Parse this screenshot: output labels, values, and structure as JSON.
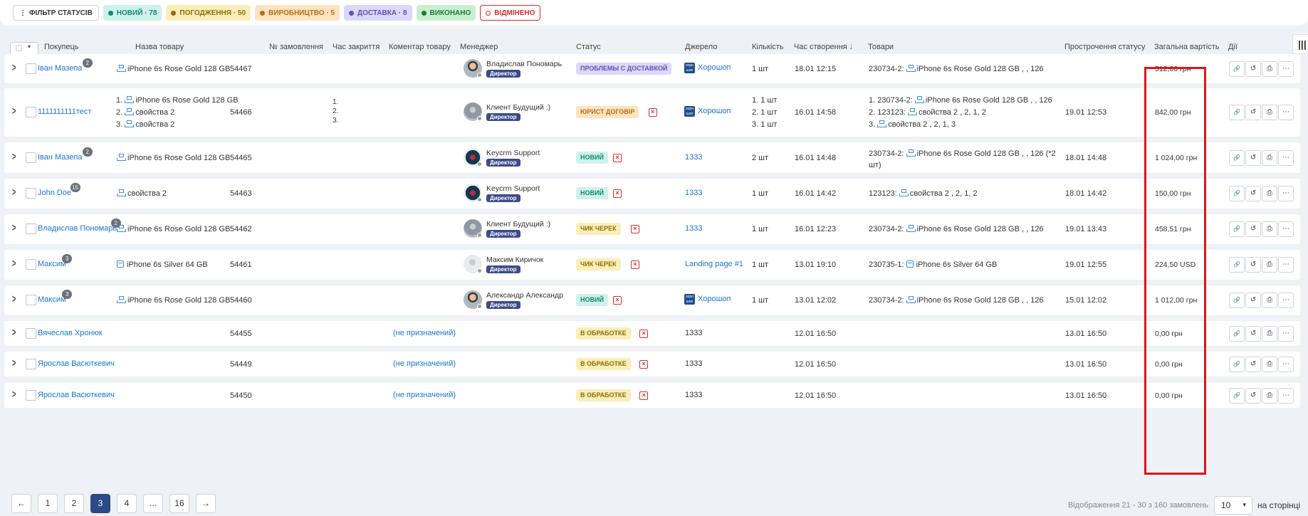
{
  "filter_bar": {
    "filter_label": "ФІЛЬТР СТАТУСІВ",
    "chips": [
      {
        "label": "НОВИЙ · 78",
        "bg": "#cdf2ea",
        "fg": "#16896d",
        "dot": "#16896d"
      },
      {
        "label": "ПОГОДЖЕННЯ · 50",
        "bg": "#fbeeb8",
        "fg": "#8c6f0b",
        "dot": "#8c6f0b"
      },
      {
        "label": "ВИРОБНИЦТВО · 5",
        "bg": "#fde3c2",
        "fg": "#b86e12",
        "dot": "#b86e12"
      },
      {
        "label": "ДОСТАВКА · 8",
        "bg": "#dcd8f7",
        "fg": "#5a4fc2",
        "dot": "#5a4fc2"
      },
      {
        "label": "ВИКОНАНО",
        "bg": "#c8f0cf",
        "fg": "#1f7a34",
        "dot": "#1f7a34"
      },
      {
        "label": "ВІДМІНЕНО",
        "bg": "#ffffff",
        "fg": "#d32f2f",
        "dot": "#ffffff"
      }
    ]
  },
  "headers": {
    "buyer": "Покупець",
    "product_name": "Назва товару",
    "order_no": "№ замовлення",
    "close_time": "Час закриття",
    "product_comment": "Коментар товару",
    "manager": "Менеджер",
    "status": "Статус",
    "source": "Джерело",
    "quantity": "Кількість",
    "created": "Час створення",
    "goods": "Товари",
    "status_overdue": "Прострочення статусу",
    "total": "Загальна вартість",
    "actions": "Дії"
  },
  "rows": [
    {
      "buyer": "Іван Мазепа",
      "buyer_count": "2",
      "products": [
        "iPhone 6s Rose Gold 128 GB"
      ],
      "order_no": "54467",
      "comments": [],
      "manager": "Владислав Пономарь",
      "role": "Директор",
      "avatar": "photo",
      "status": "ПРОБЛЕМЫ С ДОСТАВКОЙ",
      "status_color": "blue",
      "calendar": false,
      "source": "Хорошоп",
      "source_icon": true,
      "quantity": [
        "1 шт"
      ],
      "created": "18.01 12:15",
      "goods": [
        {
          "prefix": "230734-2:",
          "text": "iPhone 6s Rose Gold 128 GB , , 126"
        }
      ],
      "overdue": "",
      "total": "512,00 грн"
    },
    {
      "buyer": "1111111111тест",
      "buyer_count": "",
      "products": [
        "iPhone 6s Rose Gold 128 GB",
        "свойства 2",
        "свойства 2"
      ],
      "order_no": "54466",
      "comments": [
        "1.",
        "2.",
        "3."
      ],
      "manager": "Клиент Будущий :)",
      "role": "Директор",
      "avatar": "grey",
      "status": "ЮРИСТ ДОГОВІР",
      "status_color": "orange",
      "calendar": true,
      "source": "Хорошоп",
      "source_icon": true,
      "quantity": [
        "1. 1 шт",
        "2. 1 шт",
        "3. 1 шт"
      ],
      "created": "16.01 14:58",
      "goods": [
        {
          "prefix": "1. 230734-2:",
          "text": "iPhone 6s Rose Gold 128 GB , , 126"
        },
        {
          "prefix": "2. 123123:",
          "text": "свойства 2 , 2, 1, 2"
        },
        {
          "prefix": "3.",
          "text": "свойства 2 , 2, 1, 3"
        }
      ],
      "overdue": "19.01 12:53",
      "total": "842,00 грн"
    },
    {
      "buyer": "Іван Мазепа",
      "buyer_count": "2",
      "products": [
        "iPhone 6s Rose Gold 128 GB"
      ],
      "order_no": "54465",
      "comments": [],
      "manager": "Keycrm Support",
      "role": "Директор",
      "avatar": "logo",
      "status": "НОВИЙ",
      "status_color": "teal",
      "calendar": true,
      "source": "1333",
      "source_icon": false,
      "quantity": [
        "2 шт"
      ],
      "created": "16.01 14:48",
      "goods": [
        {
          "prefix": "230734-2:",
          "text": "iPhone 6s Rose Gold 128 GB , , 126 (*2"
        }
      ],
      "goods_extra": "шт)",
      "overdue": "18.01 14:48",
      "total": "1 024,00 грн"
    },
    {
      "buyer": "John Doe",
      "buyer_count": "15",
      "products": [
        "свойства 2"
      ],
      "order_no": "54463",
      "comments": [],
      "manager": "Keycrm Support",
      "role": "Директор",
      "avatar": "logo",
      "status": "НОВИЙ",
      "status_color": "teal",
      "calendar": true,
      "source": "1333",
      "source_icon": false,
      "quantity": [
        "1 шт"
      ],
      "created": "16.01 14:42",
      "goods": [
        {
          "prefix": "123123:",
          "text": "свойства 2 , 2, 1, 2"
        }
      ],
      "overdue": "18.01 14:42",
      "total": "150,00 грн"
    },
    {
      "buyer": "Владислав Пономарь",
      "buyer_count": "2",
      "products": [
        "iPhone 6s Rose Gold 128 GB"
      ],
      "order_no": "54462",
      "comments": [],
      "manager": "Клиент Будущий :)",
      "role": "Директор",
      "avatar": "grey",
      "status": "ЧИК ЧЕРЕК",
      "status_color": "yellow",
      "calendar": true,
      "source": "1333",
      "source_icon": false,
      "quantity": [
        "1 шт"
      ],
      "created": "16.01 12:23",
      "goods": [
        {
          "prefix": "230734-2:",
          "text": "iPhone 6s Rose Gold 128 GB , , 126"
        }
      ],
      "overdue": "19.01 13:43",
      "total": "458,51 грн"
    },
    {
      "buyer": "Максим",
      "buyer_count": "3",
      "products": [
        "iPhone 6s Silver 64 GB"
      ],
      "product_icon": "box",
      "order_no": "54461",
      "comments": [],
      "manager": "Максим Киричок",
      "role": "Директор",
      "avatar": "empty",
      "status": "ЧИК ЧЕРЕК",
      "status_color": "yellow",
      "calendar": true,
      "source": "Landing page #1",
      "source_icon": false,
      "quantity": [
        "1 шт"
      ],
      "created": "13.01 19:10",
      "goods": [
        {
          "prefix": "230735-1:",
          "text": "iPhone 6s Silver 64 GB",
          "icon": "box"
        }
      ],
      "overdue": "19.01 12:55",
      "total": "224,50 USD"
    },
    {
      "buyer": "Максим",
      "buyer_count": "3",
      "products": [
        "iPhone 6s Rose Gold 128 GB"
      ],
      "order_no": "54460",
      "comments": [],
      "manager": "Александр Александр",
      "role": "Директор",
      "avatar": "photo",
      "status": "НОВИЙ",
      "status_color": "teal",
      "calendar": true,
      "source": "Хорошоп",
      "source_icon": true,
      "quantity": [
        "1 шт"
      ],
      "created": "13.01 12:02",
      "goods": [
        {
          "prefix": "230734-2:",
          "text": "iPhone 6s Rose Gold 128 GB , , 126"
        }
      ],
      "overdue": "15.01 12:02",
      "total": "1 012,00 грн"
    },
    {
      "buyer": "Вячеслав Хронюк",
      "buyer_count": "",
      "products": [],
      "order_no": "54455",
      "comments": [],
      "manager": "(не призначений)",
      "role": "",
      "avatar": "",
      "status": "В ОБРАБОТКЕ",
      "status_color": "yellow",
      "calendar": true,
      "source": "1333",
      "source_plain": true,
      "quantity": [],
      "created": "12.01 16:50",
      "goods": [],
      "overdue": "13.01 16:50",
      "total": "0,00 грн"
    },
    {
      "buyer": "Ярослав Васюткевич",
      "buyer_count": "",
      "products": [],
      "order_no": "54449",
      "comments": [],
      "manager": "(не призначений)",
      "role": "",
      "avatar": "",
      "status": "В ОБРАБОТКЕ",
      "status_color": "yellow",
      "calendar": true,
      "source": "1333",
      "source_plain": true,
      "quantity": [],
      "created": "12.01 16:50",
      "goods": [],
      "overdue": "13.01 16:50",
      "total": "0,00 грн"
    },
    {
      "buyer": "Ярослав Васюткевич",
      "buyer_count": "",
      "products": [],
      "order_no": "54450",
      "comments": [],
      "manager": "(не призначений)",
      "role": "",
      "avatar": "",
      "status": "В ОБРАБОТКЕ",
      "status_color": "yellow",
      "calendar": true,
      "source": "1333",
      "source_plain": true,
      "quantity": [],
      "created": "12.01 16:50",
      "goods": [],
      "overdue": "13.01 16:50",
      "total": "0,00 грн"
    }
  ],
  "pagination": {
    "pages": [
      "1",
      "2",
      "3",
      "4",
      "…",
      "16"
    ],
    "active": "3",
    "info": "Відображення 21 - 30 з 160 замовлень",
    "per_page": "10",
    "per_page_label": "на сторінці"
  }
}
